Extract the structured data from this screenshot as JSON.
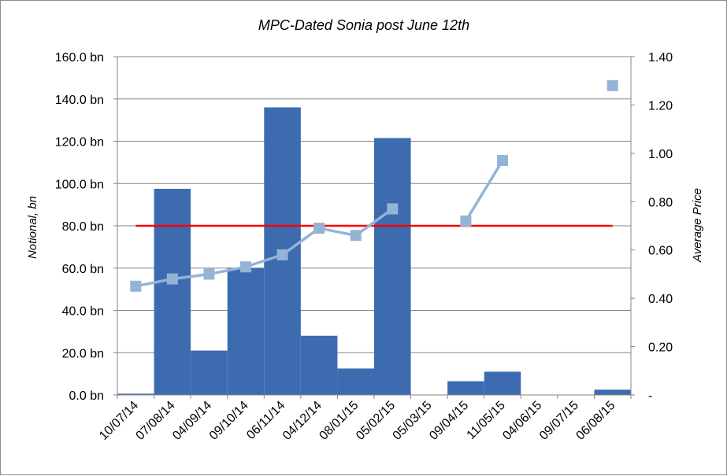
{
  "chart_data": {
    "type": "bar",
    "title": "MPC-Dated Sonia post June 12th",
    "ylabel": "Notional, bn",
    "y2label": "Average Price",
    "ylim": [
      0,
      160
    ],
    "y2lim": [
      0,
      1.4
    ],
    "grid": true,
    "categories": [
      "10/07/14",
      "07/08/14",
      "04/09/14",
      "09/10/14",
      "06/11/14",
      "04/12/14",
      "08/01/15",
      "05/02/15",
      "05/03/15",
      "09/04/15",
      "11/05/15",
      "04/06/15",
      "09/07/15",
      "06/08/15"
    ],
    "y_ticks": [
      "0.0 bn",
      "20.0 bn",
      "40.0 bn",
      "60.0 bn",
      "80.0 bn",
      "100.0 bn",
      "120.0 bn",
      "140.0 bn",
      "160.0 bn"
    ],
    "y2_ticks": [
      "-",
      "0.20",
      "0.40",
      "0.60",
      "0.80",
      "1.00",
      "1.20",
      "1.40"
    ],
    "series": [
      {
        "type": "bar",
        "axis": "left",
        "color": "#3d6bb0",
        "values": [
          0.6,
          97.5,
          21,
          60,
          136,
          28,
          12.5,
          121.5,
          0,
          6.5,
          11,
          0,
          0,
          2.5
        ]
      },
      {
        "type": "line",
        "axis": "right",
        "color": "#95b3d7",
        "marker": "square",
        "values": [
          0.45,
          0.48,
          0.5,
          0.53,
          0.58,
          0.69,
          0.66,
          0.77,
          null,
          0.72,
          0.97,
          null,
          null,
          1.28
        ]
      },
      {
        "type": "hline",
        "axis": "left",
        "color": "#ff0000",
        "value": 80
      }
    ]
  }
}
